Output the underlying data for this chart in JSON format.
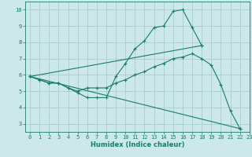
{
  "title": "",
  "xlabel": "Humidex (Indice chaleur)",
  "bg_color": "#cce8e8",
  "grid_color": "#aacccc",
  "line_color": "#1a7a6e",
  "xlim": [
    -0.5,
    23
  ],
  "ylim": [
    2.5,
    10.5
  ],
  "lines": [
    {
      "x": [
        0,
        1,
        2,
        3,
        4,
        5,
        6,
        7,
        8,
        9,
        10,
        11,
        12,
        13,
        14,
        15,
        16,
        17,
        18
      ],
      "y": [
        5.9,
        5.7,
        5.5,
        5.5,
        5.2,
        4.9,
        4.6,
        4.6,
        4.6,
        5.9,
        6.7,
        7.6,
        8.1,
        8.9,
        9.0,
        9.9,
        10.0,
        8.9,
        7.8
      ]
    },
    {
      "x": [
        0,
        1,
        2,
        3,
        4,
        5,
        6,
        7,
        8,
        9,
        10,
        11,
        12,
        13,
        14,
        15,
        16,
        17,
        18,
        19,
        20,
        21,
        22
      ],
      "y": [
        5.9,
        5.7,
        5.5,
        5.5,
        5.2,
        5.0,
        5.2,
        5.2,
        5.2,
        5.5,
        5.7,
        6.0,
        6.2,
        6.5,
        6.7,
        7.0,
        7.1,
        7.3,
        7.0,
        6.6,
        5.4,
        3.8,
        2.7
      ]
    },
    {
      "x": [
        0,
        18
      ],
      "y": [
        5.9,
        7.8
      ]
    },
    {
      "x": [
        0,
        22
      ],
      "y": [
        5.9,
        2.7
      ]
    }
  ]
}
